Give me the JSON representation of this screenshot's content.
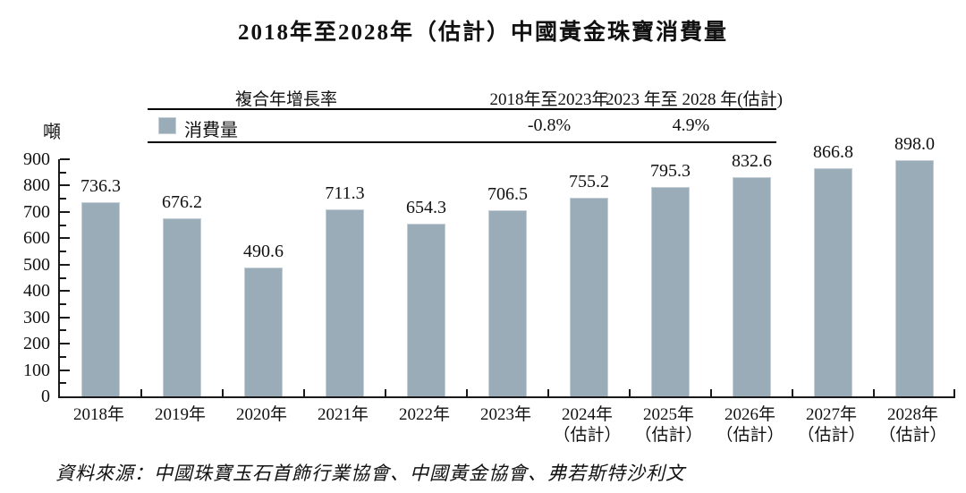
{
  "title": "2018年至2028年（估計）中國黃金珠寶消費量",
  "unit_label": "噸",
  "cagr_table": {
    "header_label": "複合年增長率",
    "period1_label": "2018年至2023年",
    "period2_label": "2023 年至 2028 年(估計)",
    "legend_label": "消費量",
    "period1_value": "-0.8%",
    "period2_value": "4.9%"
  },
  "source": "資料來源：中國珠寶玉石首飾行業協會、中國黃金協會、弗若斯特沙利文",
  "colors": {
    "bar_fill": "#9aacb8",
    "bar_border": "#c3ced6",
    "axis": "#1a1a1a",
    "text": "#111111"
  },
  "chart_data": {
    "type": "bar",
    "title": "2018年至2028年（估計）中國黃金珠寶消費量",
    "categories": [
      "2018年",
      "2019年",
      "2020年",
      "2021年",
      "2022年",
      "2023年",
      "2024年",
      "2025年",
      "2026年",
      "2027年",
      "2028年"
    ],
    "sublabels": [
      "",
      "",
      "",
      "",
      "",
      "",
      "（估計）",
      "（估計）",
      "（估計）",
      "（估計）",
      "（估計）"
    ],
    "values": [
      736.3,
      676.2,
      490.6,
      711.3,
      654.3,
      706.5,
      755.2,
      795.3,
      832.6,
      866.8,
      898.0
    ],
    "series_name": "消費量",
    "xlabel": "",
    "ylabel": "噸",
    "ylim": [
      0,
      900
    ],
    "ytick_step": 100,
    "yminor_step": 50,
    "grid": false,
    "legend_position": "top-table",
    "annotations": {
      "cagr_2018_2023": "-0.8%",
      "cagr_2023_2028": "4.9%"
    }
  }
}
